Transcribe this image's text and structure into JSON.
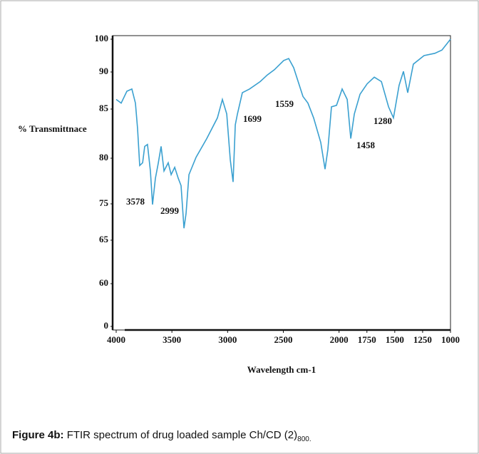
{
  "chart_data": {
    "type": "line",
    "x_label": "Wavelength cm-1",
    "y_label": "% Transmittnace",
    "xlim": [
      4000,
      1000
    ],
    "xticks": [
      4000,
      3500,
      3000,
      2500,
      2000,
      1750,
      1500,
      1250,
      1000
    ],
    "ylim": [
      0,
      100
    ],
    "yticks": [
      100,
      90,
      85,
      80,
      75,
      65,
      60,
      0
    ],
    "series": [
      {
        "color": "#3aa0d0",
        "x": [
          4000,
          3955,
          3904,
          3859,
          3827,
          3808,
          3789,
          3763,
          3744,
          3719,
          3693,
          3674,
          3648,
          3623,
          3597,
          3571,
          3533,
          3507,
          3475,
          3443,
          3418,
          3392,
          3373,
          3347,
          3283,
          3187,
          3092,
          3047,
          3008,
          2976,
          2951,
          2931,
          2912,
          2868,
          2804,
          2708,
          2644,
          2580,
          2497,
          2452,
          2407,
          2324,
          2279,
          2228,
          2164,
          2126,
          2100,
          2068,
          2023,
          1972,
          1927,
          1895,
          1863,
          1812,
          1748,
          1684,
          1620,
          1556,
          1512,
          1461,
          1422,
          1384,
          1333,
          1237,
          1141,
          1077,
          1000
        ],
        "values": [
          86.3,
          85.8,
          87.4,
          87.7,
          85.8,
          83.0,
          79.2,
          79.5,
          81.2,
          81.4,
          78.6,
          74.8,
          77.8,
          79.4,
          81.2,
          78.6,
          79.5,
          78.2,
          79.0,
          77.8,
          77.0,
          68.3,
          72.3,
          78.2,
          80.1,
          82.0,
          84.1,
          86.3,
          84.5,
          79.8,
          77.4,
          83.4,
          84.5,
          87.2,
          87.7,
          88.7,
          89.6,
          90.7,
          93.5,
          94.1,
          91.3,
          86.7,
          85.8,
          84.1,
          81.6,
          78.8,
          80.9,
          85.3,
          85.5,
          87.7,
          86.3,
          82.0,
          84.5,
          87.0,
          88.4,
          89.3,
          88.7,
          85.3,
          84.1,
          88.2,
          90.2,
          87.2,
          92.4,
          95.0,
          95.7,
          96.7,
          100
        ]
      }
    ],
    "annotations": [
      "3578",
      "2999",
      "1699",
      "1559",
      "1458",
      "1280"
    ]
  },
  "caption": {
    "label": "Figure 4b:",
    "text": "FTIR spectrum of drug loaded sample Ch/CD (2)",
    "subscript": "800."
  }
}
